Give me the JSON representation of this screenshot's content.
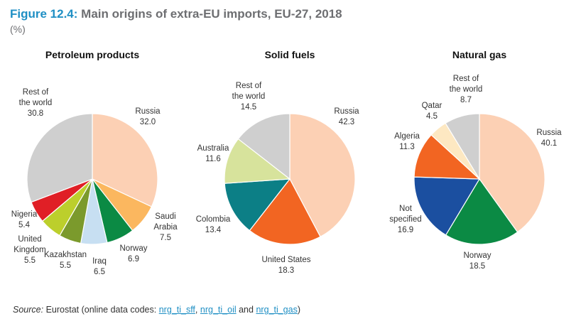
{
  "figure": {
    "number": "Figure 12.4:",
    "title": "Main origins of extra-EU imports, EU-27, 2018",
    "unit": "(%)"
  },
  "source": {
    "label": "Source:",
    "text_before": "Eurostat (online data codes:",
    "codes": [
      "nrg_ti_sff",
      "nrg_ti_oil",
      "nrg_ti_gas"
    ],
    "separator": ",",
    "conjunction": "and",
    "text_after": ")"
  },
  "chart_data": [
    {
      "type": "pie",
      "title": "Petroleum products",
      "slices": [
        {
          "label": "Russia",
          "value": 32.0,
          "display": "32.0",
          "color": "#fcd0b4"
        },
        {
          "label": "Saudi Arabia",
          "value": 7.5,
          "display": "7.5",
          "color": "#fbb75f"
        },
        {
          "label": "Norway",
          "value": 6.9,
          "display": "6.9",
          "color": "#0b8a44"
        },
        {
          "label": "Iraq",
          "value": 6.5,
          "display": "6.5",
          "color": "#c7dff2"
        },
        {
          "label": "Kazakhstan",
          "value": 5.5,
          "display": "5.5",
          "color": "#7b9a2c"
        },
        {
          "label": "United Kingdom",
          "value": 5.5,
          "display": "5.5",
          "color": "#bccf2c"
        },
        {
          "label": "Nigeria",
          "value": 5.4,
          "display": "5.4",
          "color": "#e01f26"
        },
        {
          "label": "Rest of the world",
          "value": 30.8,
          "display": "30.8",
          "color": "#cfcfcf"
        }
      ]
    },
    {
      "type": "pie",
      "title": "Solid fuels",
      "slices": [
        {
          "label": "Russia",
          "value": 42.3,
          "display": "42.3",
          "color": "#fcd0b4"
        },
        {
          "label": "United States",
          "value": 18.3,
          "display": "18.3",
          "color": "#f26522"
        },
        {
          "label": "Colombia",
          "value": 13.4,
          "display": "13.4",
          "color": "#0c7f86"
        },
        {
          "label": "Australia",
          "value": 11.6,
          "display": "11.6",
          "color": "#d7e39c"
        },
        {
          "label": "Rest of the world",
          "value": 14.5,
          "display": "14.5",
          "color": "#cfcfcf"
        }
      ]
    },
    {
      "type": "pie",
      "title": "Natural gas",
      "slices": [
        {
          "label": "Russia",
          "value": 40.1,
          "display": "40.1",
          "color": "#fcd0b4"
        },
        {
          "label": "Norway",
          "value": 18.5,
          "display": "18.5",
          "color": "#0b8a44"
        },
        {
          "label": "Not specified",
          "value": 16.9,
          "display": "16.9",
          "color": "#1b4fa0"
        },
        {
          "label": "Algeria",
          "value": 11.3,
          "display": "11.3",
          "color": "#f26522"
        },
        {
          "label": "Qatar",
          "value": 4.5,
          "display": "4.5",
          "color": "#fde8c2"
        },
        {
          "label": "Rest of the world",
          "value": 8.7,
          "display": "8.7",
          "color": "#cfcfcf"
        }
      ]
    }
  ]
}
